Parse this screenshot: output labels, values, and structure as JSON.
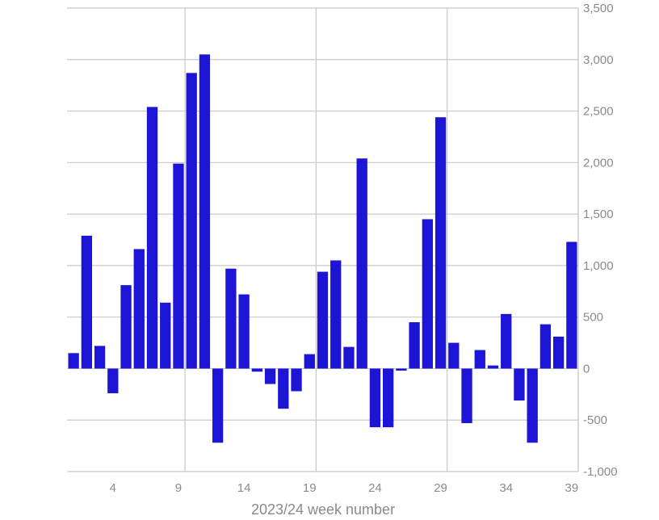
{
  "chart_data": {
    "type": "bar",
    "x": [
      1,
      2,
      3,
      4,
      5,
      6,
      7,
      8,
      9,
      10,
      11,
      12,
      13,
      14,
      15,
      16,
      17,
      18,
      19,
      20,
      21,
      22,
      23,
      24,
      25,
      26,
      27,
      28,
      29,
      30,
      31,
      32,
      33,
      34,
      35,
      36,
      37,
      38,
      39
    ],
    "values": [
      150,
      1290,
      220,
      -240,
      810,
      1160,
      2540,
      640,
      1990,
      2870,
      3050,
      -720,
      970,
      720,
      -30,
      -150,
      -390,
      -220,
      140,
      940,
      1050,
      210,
      2040,
      -570,
      -570,
      -20,
      450,
      1450,
      2440,
      250,
      -530,
      180,
      30,
      530,
      -310,
      -720,
      430,
      310,
      1230
    ],
    "xlabel": "2023/24 week number",
    "ylabel": "",
    "ylim": [
      -1000,
      3500
    ],
    "y_ticks": [
      -1000,
      -500,
      0,
      500,
      1000,
      1500,
      2000,
      2500,
      3000,
      3500
    ],
    "y_tick_labels": [
      "-1,000",
      "-500",
      "0",
      "500",
      "1,000",
      "1,500",
      "2,000",
      "2,500",
      "3,000",
      "3,500"
    ],
    "x_ticks": [
      4,
      9,
      14,
      19,
      24,
      29,
      34,
      39
    ],
    "x_gridlines": [
      9,
      19,
      29,
      39
    ],
    "grid": true,
    "y_axis_position": "right",
    "bar_color": "#1c15d6"
  }
}
